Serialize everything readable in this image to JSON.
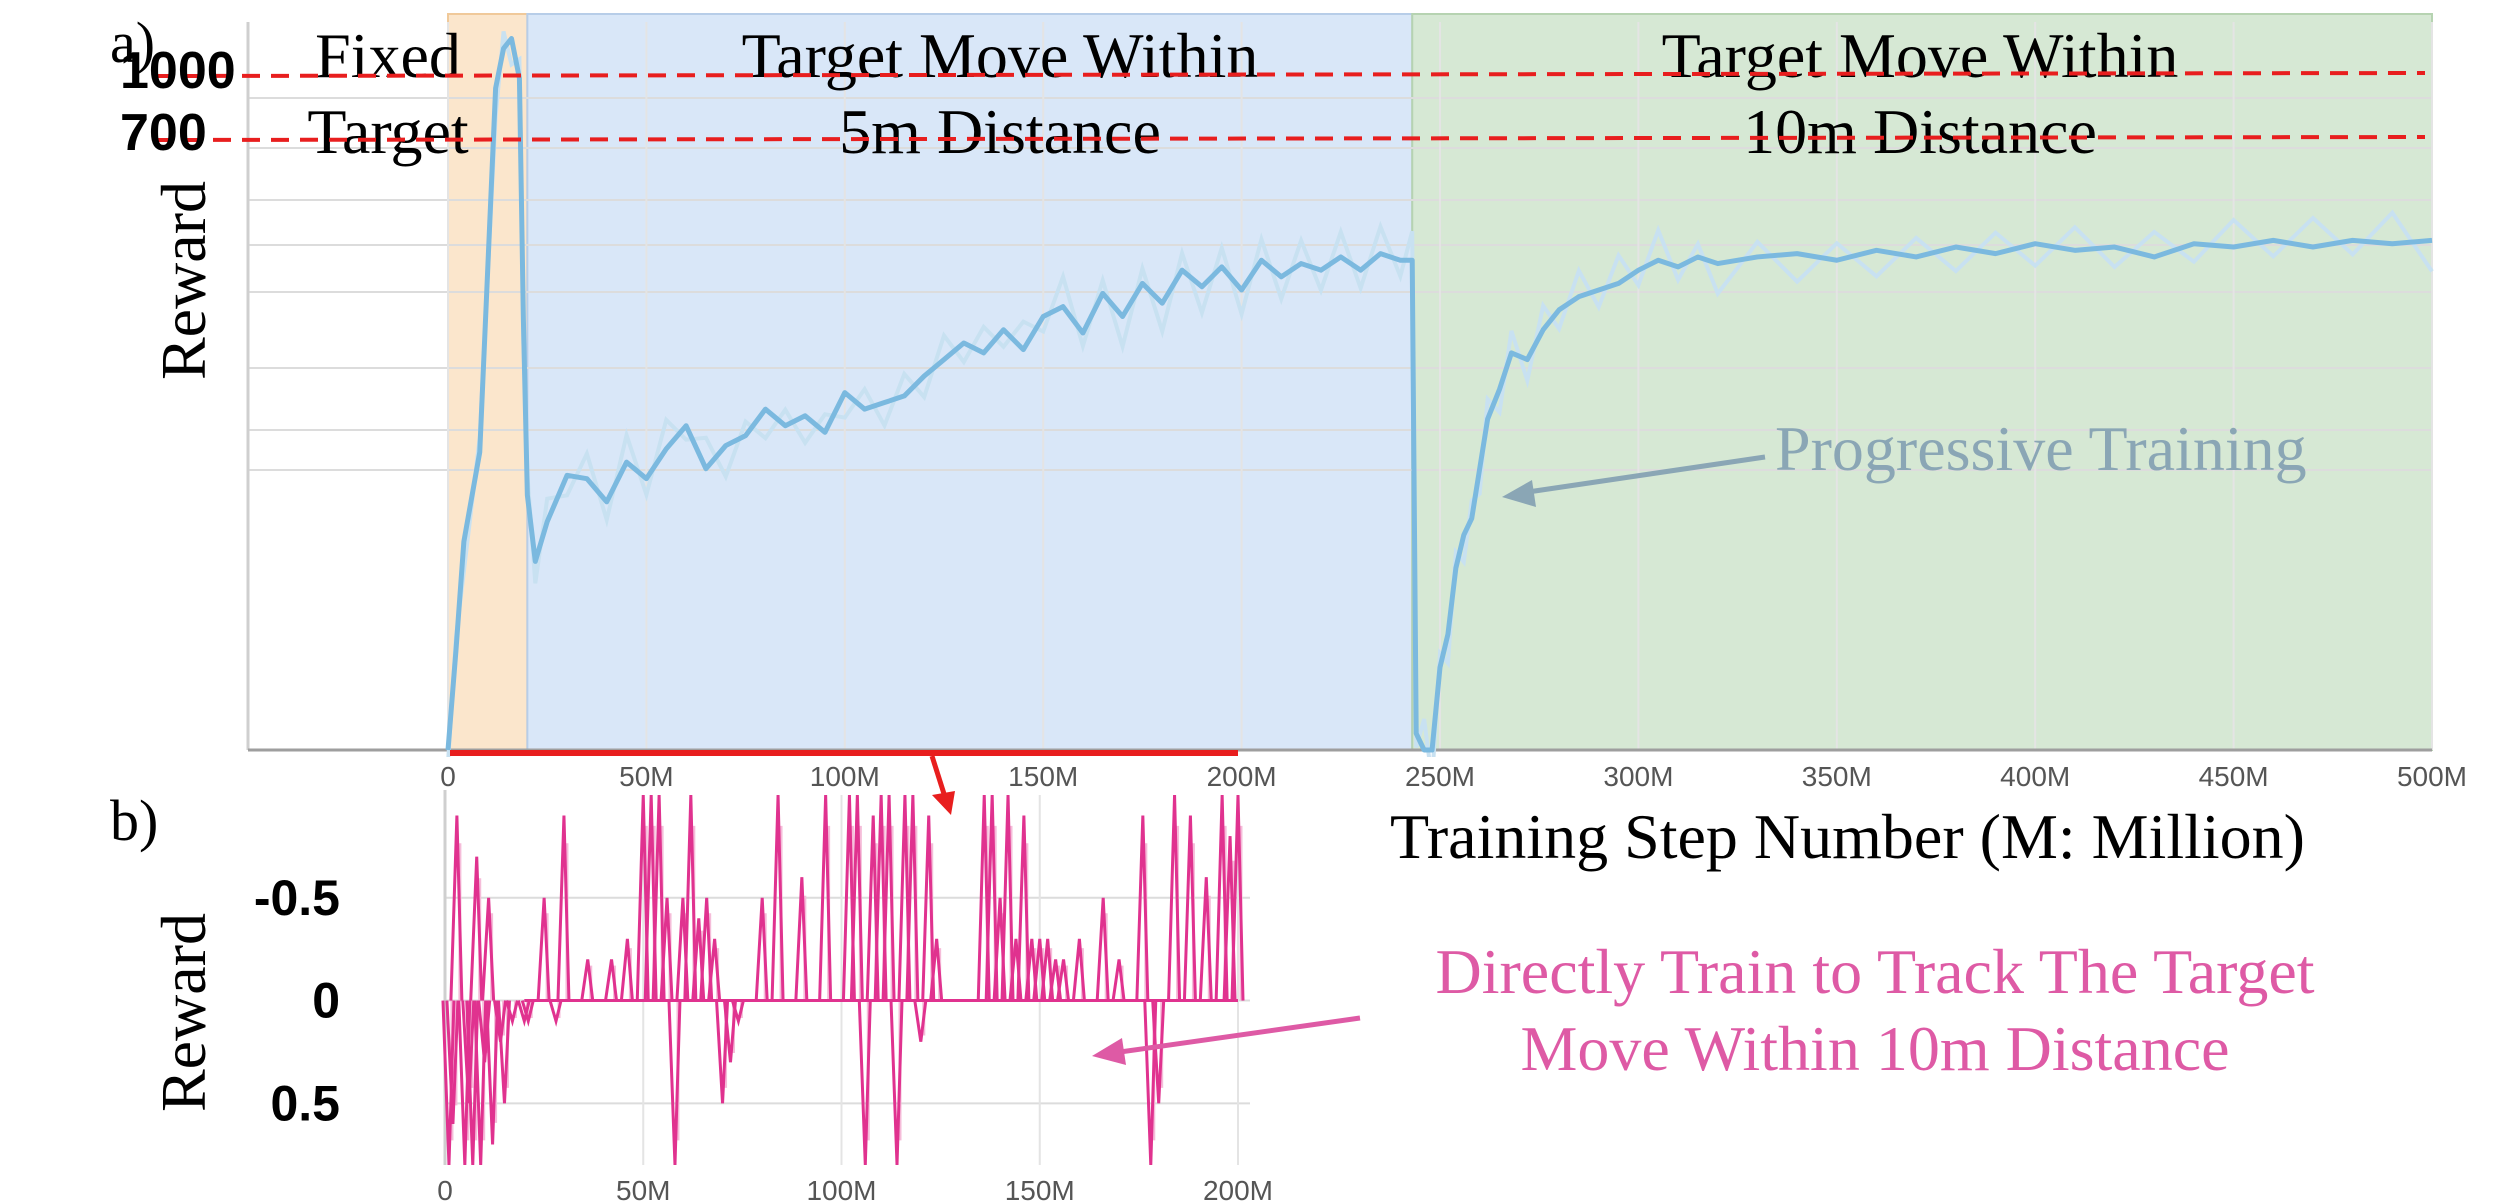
{
  "colors": {
    "fixed_band": "#fbe6cc",
    "band5": "#d9e7f8",
    "band10": "#d6e8d4",
    "line_a": "#7bb9df",
    "line_a_light": "#c8e1f1",
    "line_b": "#e0328f",
    "line_b_light": "#f5bcd9",
    "ref_line": "#e81e1e",
    "annot_a": "#8aa6b5",
    "annot_b": "#de5aa5",
    "grid": "#dcdcdc",
    "tick": "#555555"
  },
  "panel_a": {
    "label": "a)",
    "ylabel": "Reward",
    "xlabel": "Training Step Number (M: Million)",
    "ref_lines": [
      {
        "value": 1000,
        "label": "1000"
      },
      {
        "value": 700,
        "label": "700"
      }
    ],
    "phases": [
      {
        "name": "fixed",
        "start": 0,
        "end": 20,
        "label_lines": [
          "Fixed",
          "Target"
        ]
      },
      {
        "name": "move5",
        "start": 20,
        "end": 243,
        "label_lines": [
          "Target Move Within",
          "5m Distance"
        ]
      },
      {
        "name": "move10",
        "start": 243,
        "end": 500,
        "label_lines": [
          "Target Move Within",
          "10m Distance"
        ]
      }
    ],
    "annotation": "Progressive Training",
    "xticks": [
      "0",
      "50M",
      "100M",
      "150M",
      "200M",
      "250M",
      "300M",
      "350M",
      "400M",
      "450M",
      "500M"
    ]
  },
  "panel_b": {
    "label": "b)",
    "ylabel": "Reward",
    "yticks": [
      "0.5",
      "0",
      "-0.5"
    ],
    "annotation_lines": [
      "Directly Train to Track The Target",
      "Move Within 10m Distance"
    ],
    "xticks": [
      "0",
      "50M",
      "100M",
      "150M",
      "200M"
    ]
  },
  "chart_data": [
    {
      "type": "line",
      "panel": "a",
      "ylabel": "Reward",
      "xlabel": "Training Step Number (M: Million)",
      "xlim": [
        0,
        500
      ],
      "ylim": [
        -1150,
        1050
      ],
      "reference_lines": [
        1000,
        700
      ],
      "series": [
        {
          "name": "Progressive Training",
          "x": [
            0,
            2,
            4,
            8,
            12,
            14,
            16,
            18,
            19,
            20,
            22,
            25,
            30,
            35,
            40,
            45,
            50,
            55,
            60,
            65,
            70,
            75,
            80,
            85,
            90,
            95,
            100,
            105,
            110,
            115,
            120,
            125,
            130,
            135,
            140,
            145,
            150,
            155,
            160,
            165,
            170,
            175,
            180,
            185,
            190,
            195,
            200,
            205,
            210,
            215,
            220,
            225,
            230,
            235,
            240,
            243,
            244,
            246,
            248,
            250,
            252,
            254,
            256,
            258,
            260,
            262,
            265,
            268,
            272,
            276,
            280,
            285,
            290,
            295,
            300,
            305,
            310,
            315,
            320,
            330,
            340,
            350,
            360,
            370,
            380,
            390,
            400,
            410,
            420,
            430,
            440,
            450,
            460,
            470,
            480,
            490,
            500
          ],
          "y": [
            -1150,
            -850,
            -520,
            -250,
            850,
            970,
            1000,
            880,
            150,
            -380,
            -580,
            -460,
            -320,
            -330,
            -400,
            -280,
            -330,
            -240,
            -170,
            -300,
            -230,
            -200,
            -120,
            -170,
            -140,
            -190,
            -70,
            -120,
            -100,
            -80,
            -20,
            30,
            80,
            50,
            120,
            60,
            160,
            190,
            110,
            230,
            160,
            260,
            200,
            300,
            250,
            310,
            240,
            330,
            280,
            320,
            300,
            340,
            300,
            350,
            330,
            330,
            -1100,
            -1150,
            -1150,
            -900,
            -800,
            -600,
            -500,
            -450,
            -300,
            -150,
            -60,
            50,
            30,
            120,
            180,
            220,
            240,
            260,
            300,
            330,
            310,
            340,
            320,
            340,
            350,
            330,
            360,
            340,
            370,
            350,
            380,
            360,
            370,
            340,
            380,
            370,
            390,
            370,
            390,
            380,
            390
          ]
        }
      ]
    },
    {
      "type": "line",
      "panel": "b",
      "ylabel": "Reward",
      "xlim": [
        0,
        200
      ],
      "ylim": [
        -0.8,
        1.0
      ],
      "yticks": [
        -0.5,
        0,
        0.5
      ],
      "series": [
        {
          "name": "Directly Train to Track The Target Move Within 10m Distance",
          "baseline": 0,
          "spikes_x": [
            1,
            2,
            3,
            5,
            6,
            7,
            8,
            9,
            10,
            11,
            12,
            14,
            15,
            17,
            20,
            21,
            25,
            28,
            30,
            36,
            42,
            46,
            50,
            52,
            54,
            56,
            58,
            60,
            62,
            64,
            66,
            68,
            70,
            72,
            74,
            80,
            84,
            90,
            96,
            102,
            104,
            106,
            108,
            110,
            112,
            114,
            116,
            118,
            120,
            122,
            124,
            136,
            138,
            140,
            142,
            144,
            146,
            148,
            150,
            152,
            154,
            156,
            160,
            166,
            170,
            176,
            178,
            180,
            184,
            188,
            192,
            196,
            198,
            200
          ],
          "spikes_y": [
            -0.8,
            -0.6,
            0.9,
            -0.8,
            -0.5,
            -0.8,
            0.7,
            -0.8,
            -0.3,
            0.5,
            -0.7,
            -0.2,
            -0.5,
            -0.1,
            -0.1,
            -0.1,
            0.5,
            -0.1,
            0.9,
            0.2,
            0.2,
            0.3,
            1.0,
            1.0,
            1.0,
            0.5,
            -0.8,
            0.5,
            1.0,
            0.4,
            0.5,
            0.3,
            -0.5,
            -0.3,
            -0.1,
            0.5,
            1.0,
            0.6,
            1.0,
            1.0,
            1.0,
            -0.8,
            0.9,
            1.0,
            1.0,
            -0.8,
            1.0,
            1.0,
            -0.2,
            0.9,
            0.3,
            1.0,
            1.0,
            0.5,
            1.0,
            0.3,
            0.9,
            0.3,
            0.3,
            0.3,
            0.2,
            0.2,
            0.3,
            0.5,
            0.2,
            0.9,
            -0.8,
            -0.5,
            1.0,
            0.9,
            0.6,
            1.0,
            0.8,
            1.0
          ]
        }
      ]
    }
  ]
}
